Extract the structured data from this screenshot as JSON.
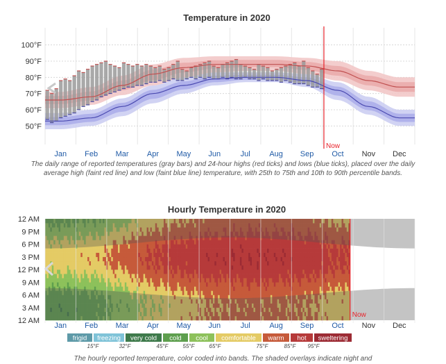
{
  "chart_data": [
    {
      "type": "band-range",
      "title": "Temperature in 2020",
      "y_unit": "°F",
      "yticks": [
        "100°F",
        "90°F",
        "80°F",
        "70°F",
        "60°F",
        "50°F"
      ],
      "ytick_values": [
        100,
        90,
        80,
        70,
        60,
        50
      ],
      "ylim": [
        42,
        108
      ],
      "months": [
        "Jan",
        "Feb",
        "Mar",
        "Apr",
        "May",
        "Jun",
        "Jul",
        "Aug",
        "Sep",
        "Oct",
        "Nov",
        "Dec"
      ],
      "observed_months": 10,
      "now_label": "Now",
      "now_month_index": 9.05,
      "avg_high": [
        66,
        68,
        75,
        82,
        86,
        88,
        88,
        88,
        87,
        84,
        78,
        74
      ],
      "avg_low": [
        53,
        55,
        62,
        70,
        75,
        79,
        80,
        80,
        78,
        72,
        62,
        55
      ],
      "high_band_10_90": [
        [
          61,
          71
        ],
        [
          63,
          74
        ],
        [
          69,
          81
        ],
        [
          75,
          88
        ],
        [
          80,
          92
        ],
        [
          83,
          93
        ],
        [
          84,
          93
        ],
        [
          84,
          93
        ],
        [
          82,
          92
        ],
        [
          78,
          90
        ],
        [
          72,
          84
        ],
        [
          68,
          80
        ]
      ],
      "low_band_10_90": [
        [
          48,
          58
        ],
        [
          50,
          60
        ],
        [
          56,
          67
        ],
        [
          64,
          75
        ],
        [
          70,
          80
        ],
        [
          75,
          83
        ],
        [
          77,
          83
        ],
        [
          77,
          83
        ],
        [
          74,
          82
        ],
        [
          66,
          77
        ],
        [
          57,
          68
        ],
        [
          50,
          60
        ]
      ],
      "daily_high": [
        72,
        70,
        73,
        78,
        79,
        78,
        81,
        84,
        83,
        85,
        87,
        88,
        89,
        90,
        88,
        87,
        86,
        89,
        88,
        87,
        88,
        87,
        88,
        87,
        86,
        87,
        85,
        86,
        88,
        90,
        85,
        84,
        86,
        87,
        88,
        89,
        90,
        87,
        86,
        88,
        89,
        90,
        91,
        88,
        87,
        86,
        85,
        88,
        87,
        86,
        84,
        85,
        86,
        87,
        88,
        89,
        87,
        90,
        86,
        84,
        82,
        85
      ],
      "daily_low": [
        54,
        52,
        53,
        55,
        56,
        57,
        58,
        60,
        62,
        63,
        65,
        66,
        68,
        69,
        70,
        71,
        72,
        73,
        74,
        74,
        75,
        75,
        76,
        77,
        77,
        78,
        77,
        78,
        79,
        78,
        78,
        79,
        80,
        79,
        80,
        79,
        80,
        79,
        79,
        80,
        79,
        80,
        79,
        79,
        80,
        79,
        79,
        78,
        79,
        78,
        78,
        78,
        77,
        78,
        77,
        76,
        76,
        76,
        75,
        74,
        74,
        73
      ],
      "caption": "The daily range of reported temperatures (gray bars) and 24-hour highs (red ticks) and lows (blue ticks), placed over the daily average high (faint red line) and low (faint blue line) temperature, with 25th to 75th and 10th to 90th percentile bands."
    },
    {
      "type": "heatmap",
      "title": "Hourly Temperature in 2020",
      "yticks": [
        "12 AM",
        "9 PM",
        "6 PM",
        "3 PM",
        "12 PM",
        "9 AM",
        "6 AM",
        "3 AM",
        "12 AM"
      ],
      "months": [
        "Jan",
        "Feb",
        "Mar",
        "Apr",
        "May",
        "Jun",
        "Jul",
        "Aug",
        "Sep",
        "Oct",
        "Nov",
        "Dec"
      ],
      "observed_months": 9.9,
      "now_label": "Now",
      "monthly_min": [
        48,
        50,
        57,
        66,
        71,
        75,
        77,
        77,
        75,
        70
      ],
      "monthly_max": [
        70,
        72,
        79,
        86,
        90,
        92,
        93,
        93,
        91,
        87
      ],
      "bands": [
        {
          "label": "frigid",
          "color": "#5e9aa8",
          "upper": "15°F"
        },
        {
          "label": "freezing",
          "color": "#7fc3d8",
          "upper": "32°F"
        },
        {
          "label": "very cold",
          "color": "#3e7a4b",
          "upper": "45°F"
        },
        {
          "label": "cold",
          "color": "#5e9f4e",
          "upper": "55°F"
        },
        {
          "label": "cool",
          "color": "#8dc15b",
          "upper": "65°F"
        },
        {
          "label": "comfortable",
          "color": "#e4cb65",
          "upper": "75°F"
        },
        {
          "label": "warm",
          "color": "#c65a3a",
          "upper": "85°F"
        },
        {
          "label": "hot",
          "color": "#b63a3a",
          "upper": "95°F"
        },
        {
          "label": "sweltering",
          "color": "#9c2b34",
          "upper": ""
        }
      ],
      "caption": "The hourly reported temperature, color coded into bands. The shaded overlays indicate night and"
    }
  ],
  "colors": {
    "now_line": "#e8222a",
    "month_text": "#1f5aa6",
    "future_month_text": "#333333",
    "high_line": "#c05050",
    "low_line": "#4a4ab0",
    "high_band_outer": "#f2c8c8",
    "high_band_inner": "#e8a8a8",
    "low_band_outer": "#cccef2",
    "low_band_inner": "#a8aae8",
    "range_bar": "#9a9a9a",
    "night_overlay": "#555555"
  }
}
